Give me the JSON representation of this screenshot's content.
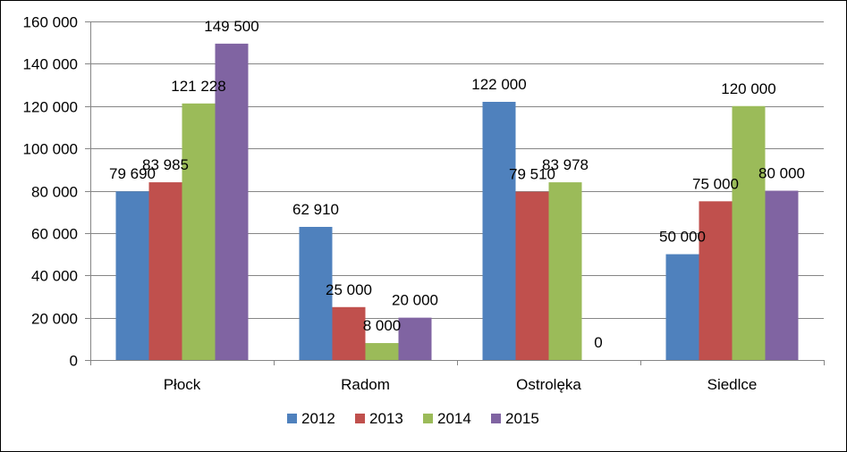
{
  "chart_data": {
    "type": "bar",
    "categories": [
      "Płock",
      "Radom",
      "Ostrolęka",
      "Siedlce"
    ],
    "series": [
      {
        "name": "2012",
        "color": "#4F81BD",
        "values": [
          79690,
          62910,
          122000,
          50000
        ]
      },
      {
        "name": "2013",
        "color": "#C0504D",
        "values": [
          83985,
          25000,
          79510,
          75000
        ]
      },
      {
        "name": "2014",
        "color": "#9BBB59",
        "values": [
          121228,
          8000,
          83978,
          120000
        ]
      },
      {
        "name": "2015",
        "color": "#8064A2",
        "values": [
          149500,
          20000,
          0,
          80000
        ]
      }
    ],
    "data_labels": [
      [
        "79 690",
        "62 910",
        "122 000",
        "50 000"
      ],
      [
        "83 985",
        "25 000",
        "79 510",
        "75 000"
      ],
      [
        "121 228",
        "8 000",
        "83 978",
        "120 000"
      ],
      [
        "149 500",
        "20 000",
        "0",
        "80 000"
      ]
    ],
    "y_ticks": [
      0,
      20000,
      40000,
      60000,
      80000,
      100000,
      120000,
      140000,
      160000
    ],
    "y_tick_labels": [
      "0",
      "20 000",
      "40 000",
      "60 000",
      "80 000",
      "100 000",
      "120 000",
      "140 000",
      "160 000"
    ],
    "ylim": [
      0,
      160000
    ],
    "grid": true,
    "legend_position": "bottom",
    "title": "",
    "xlabel": "",
    "ylabel": ""
  }
}
